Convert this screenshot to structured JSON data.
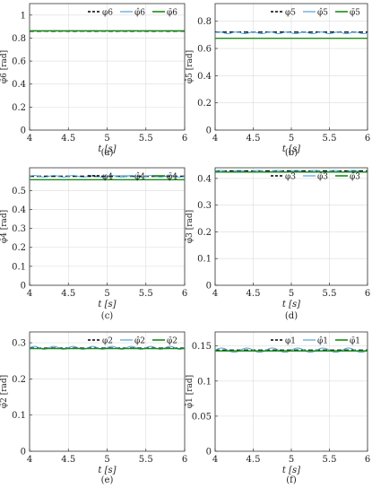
{
  "figure": {
    "panel_labels": [
      "(a)",
      "(b)",
      "(c)",
      "(d)",
      "(e)",
      "(f)"
    ],
    "colors": {
      "reference": "#000000",
      "estimate": "#4fa3d8",
      "average": "#1a8a1a",
      "grid": "#dcdcdc",
      "axis": "#333333"
    }
  },
  "chart_data": [
    {
      "type": "line",
      "panel": "(a)",
      "xlabel": "t [s]",
      "ylabel": "φ̂6 [rad]",
      "xlim": [
        4,
        6
      ],
      "ylim": [
        0,
        1.1
      ],
      "xticks": [
        4,
        4.5,
        5,
        5.5,
        6
      ],
      "xticklabels": [
        "4",
        "4.5",
        "5",
        "5.5",
        "6"
      ],
      "yticks": [
        0,
        0.2,
        0.4,
        0.6,
        0.8,
        1
      ],
      "yticklabels": [
        "0",
        "0.2",
        "0.4",
        "0.6",
        "0.8",
        "1"
      ],
      "grid": true,
      "legend": "top-right",
      "series": [
        {
          "name": "φ6",
          "role": "reference",
          "value": 0.86
        },
        {
          "name": "φ̂6",
          "role": "estimate",
          "mean": 0.862,
          "amp": 0.002,
          "cycles": 8
        },
        {
          "name": "φ̄6",
          "role": "average",
          "value": 0.863
        }
      ]
    },
    {
      "type": "line",
      "panel": "(b)",
      "xlabel": "t [s]",
      "ylabel": "φ̂5 [rad]",
      "xlim": [
        4,
        6
      ],
      "ylim": [
        0,
        0.93
      ],
      "xticks": [
        4,
        4.5,
        5,
        5.5,
        6
      ],
      "xticklabels": [
        "4",
        "4.5",
        "5",
        "5.5",
        "6"
      ],
      "yticks": [
        0,
        0.2,
        0.4,
        0.6,
        0.8
      ],
      "yticklabels": [
        "0",
        "0.2",
        "0.4",
        "0.6",
        "0.8"
      ],
      "grid": true,
      "legend": "top-right",
      "series": [
        {
          "name": "φ5",
          "role": "reference",
          "value": 0.72
        },
        {
          "name": "φ̂5",
          "role": "estimate",
          "mean": 0.715,
          "amp": 0.006,
          "cycles": 9
        },
        {
          "name": "φ̄5",
          "role": "average",
          "value": 0.675
        }
      ]
    },
    {
      "type": "line",
      "panel": "(c)",
      "xlabel": "t [s]",
      "ylabel": "φ̂4 [rad]",
      "xlim": [
        4,
        6
      ],
      "ylim": [
        0,
        0.62
      ],
      "xticks": [
        4,
        4.5,
        5,
        5.5,
        6
      ],
      "xticklabels": [
        "4",
        "4.5",
        "5",
        "5.5",
        "6"
      ],
      "yticks": [
        0,
        0.1,
        0.2,
        0.3,
        0.4,
        0.5
      ],
      "yticklabels": [
        "0",
        "0.1",
        "0.2",
        "0.3",
        "0.4",
        "0.5"
      ],
      "grid": true,
      "legend": "top-right",
      "series": [
        {
          "name": "φ4",
          "role": "reference",
          "value": 0.575
        },
        {
          "name": "φ̂4",
          "role": "estimate",
          "mean": 0.575,
          "amp": 0.004,
          "cycles": 8
        },
        {
          "name": "φ̄4",
          "role": "average",
          "value": 0.557
        }
      ]
    },
    {
      "type": "line",
      "panel": "(d)",
      "xlabel": "t [s]",
      "ylabel": "φ̂3 [rad]",
      "xlim": [
        4,
        6
      ],
      "ylim": [
        0,
        0.44
      ],
      "xticks": [
        4,
        4.5,
        5,
        5.5,
        6
      ],
      "xticklabels": [
        "4",
        "4.5",
        "5",
        "5.5",
        "6"
      ],
      "yticks": [
        0,
        0.1,
        0.2,
        0.3,
        0.4
      ],
      "yticklabels": [
        "0",
        "0.1",
        "0.2",
        "0.3",
        "0.4"
      ],
      "grid": true,
      "legend": "top-right",
      "series": [
        {
          "name": "φ3",
          "role": "reference",
          "value": 0.428
        },
        {
          "name": "φ̂3",
          "role": "estimate",
          "mean": 0.427,
          "amp": 0.003,
          "cycles": 8
        },
        {
          "name": "φ̄3",
          "role": "average",
          "value": 0.424
        }
      ]
    },
    {
      "type": "line",
      "panel": "(e)",
      "xlabel": "t [s]",
      "ylabel": "φ̂2 [rad]",
      "xlim": [
        4,
        6
      ],
      "ylim": [
        0,
        0.33
      ],
      "xticks": [
        4,
        4.5,
        5,
        5.5,
        6
      ],
      "xticklabels": [
        "4",
        "4.5",
        "5",
        "5.5",
        "6"
      ],
      "yticks": [
        0,
        0.1,
        0.2,
        0.3
      ],
      "yticklabels": [
        "0",
        "0.1",
        "0.2",
        "0.3"
      ],
      "grid": true,
      "legend": "top-right",
      "series": [
        {
          "name": "φ2",
          "role": "reference",
          "value": 0.285
        },
        {
          "name": "φ̂2",
          "role": "estimate",
          "mean": 0.286,
          "amp": 0.004,
          "cycles": 8
        },
        {
          "name": "φ̄2",
          "role": "average",
          "value": 0.284
        }
      ]
    },
    {
      "type": "line",
      "panel": "(f)",
      "xlabel": "t [s]",
      "ylabel": "φ̂1 [rad]",
      "xlim": [
        4,
        6
      ],
      "ylim": [
        0,
        0.17
      ],
      "xticks": [
        4,
        4.5,
        5,
        5.5,
        6
      ],
      "xticklabels": [
        "4",
        "4.5",
        "5",
        "5.5",
        "6"
      ],
      "yticks": [
        0,
        0.05,
        0.1,
        0.15
      ],
      "yticklabels": [
        "0",
        "0.05",
        "0.1",
        "0.15"
      ],
      "grid": true,
      "legend": "top-right",
      "series": [
        {
          "name": "φ1",
          "role": "reference",
          "value": 0.144
        },
        {
          "name": "φ̂1",
          "role": "estimate",
          "mean": 0.144,
          "amp": 0.003,
          "cycles": 6
        },
        {
          "name": "φ̄1",
          "role": "average",
          "value": 0.143
        }
      ]
    }
  ]
}
